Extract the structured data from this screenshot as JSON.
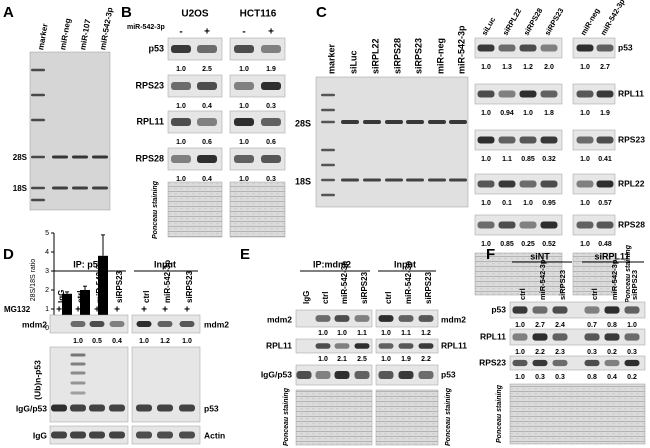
{
  "panel_a": {
    "letter": "A",
    "lanes": [
      "marker",
      "miR-neg",
      "miR-107",
      "miR-542-3p"
    ],
    "gel_labels": [
      "28S",
      "18S"
    ],
    "chart": {
      "type": "bar",
      "y_label": "28S/18S ratio",
      "values": [
        1.8,
        2.0,
        3.8
      ],
      "errors": [
        0.1,
        0.2,
        1.1
      ],
      "ylim": [
        0,
        5
      ],
      "yticks": [
        0,
        1,
        2,
        3,
        4,
        5
      ],
      "color": "#000000"
    }
  },
  "panel_b": {
    "letter": "B",
    "cell_lines": [
      "U2OS",
      "HCT116"
    ],
    "treatment": "miR-542-3p",
    "treatment_signs": [
      "-",
      "+",
      "-",
      "+"
    ],
    "blots": [
      {
        "protein": "p53",
        "quant": [
          "1.0",
          "2.5",
          "1.0",
          "1.9"
        ]
      },
      {
        "protein": "RPS23",
        "quant": [
          "1.0",
          "0.4",
          "1.0",
          "0.3"
        ]
      },
      {
        "protein": "RPL11",
        "quant": [
          "1.0",
          "0.6",
          "1.0",
          "0.6"
        ]
      },
      {
        "protein": "RPS28",
        "quant": [
          "1.0",
          "0.4",
          "1.0",
          "0.3"
        ]
      }
    ],
    "loading_control": "Ponceau staining"
  },
  "panel_c": {
    "letter": "C",
    "gel_lanes": [
      "marker",
      "siLuc",
      "siRPL22",
      "siRPS28",
      "siRPS23",
      "miR-neg",
      "miR-542-3p"
    ],
    "gel_labels": [
      "28S",
      "18S"
    ],
    "blot_lanes": [
      "siLuc",
      "siRPL22",
      "siRPS28",
      "siRPS23",
      "miR-neg",
      "miR-542-3p"
    ],
    "blots": [
      {
        "protein": "p53",
        "quant": [
          "1.0",
          "1.3",
          "1.2",
          "2.0",
          "1.0",
          "2.7"
        ]
      },
      {
        "protein": "RPL11",
        "quant": [
          "1.0",
          "0.94",
          "1.0",
          "1.8",
          "1.0",
          "1.9"
        ]
      },
      {
        "protein": "RPS23",
        "quant": [
          "1.0",
          "1.1",
          "0.85",
          "0.32",
          "1.0",
          "0.41"
        ]
      },
      {
        "protein": "RPL22",
        "quant": [
          "1.0",
          "0.1",
          "1.0",
          "0.95",
          "1.0",
          "0.57"
        ]
      },
      {
        "protein": "RPS28",
        "quant": [
          "1.0",
          "0.85",
          "0.25",
          "0.52",
          "1.0",
          "0.48"
        ]
      }
    ],
    "loading_control": "Ponceau staining"
  },
  "panel_d": {
    "letter": "D",
    "groups": [
      "IP: p53",
      "Input"
    ],
    "lanes": [
      "IgG",
      "ctrl",
      "miR-542-3p",
      "siRPS23",
      "ctrl",
      "miR-542-3p",
      "siRPS23"
    ],
    "treatment": "MG132",
    "treatment_signs": [
      "+",
      "+",
      "+",
      "+",
      "+",
      "+",
      "+"
    ],
    "left_labels": [
      "mdm2",
      "(Ub)n-p53",
      "IgG/p53",
      "IgG"
    ],
    "right_labels": [
      "mdm2",
      "p53",
      "Actin"
    ],
    "quant": [
      "1.0",
      "0.5",
      "0.4",
      "1.0",
      "1.2",
      "1.0"
    ]
  },
  "panel_e": {
    "letter": "E",
    "groups": [
      "IP:mdm2",
      "Input"
    ],
    "lanes": [
      "IgG",
      "ctrl",
      "miR-542-3p",
      "siRPS23",
      "ctrl",
      "miR-542-3p",
      "siRPS23"
    ],
    "left_labels": [
      "mdm2",
      "RPL11",
      "IgG/p53",
      "Ponceau staining"
    ],
    "right_labels": [
      "mdm2",
      "RPL11",
      "p53",
      "Ponceau staining"
    ],
    "quant": [
      [
        "1.0",
        "1.0",
        "1.1",
        "1.0",
        "1.1",
        "1.2"
      ],
      [
        "1.0",
        "2.1",
        "2.5",
        "1.0",
        "1.9",
        "2.2"
      ]
    ]
  },
  "panel_f": {
    "letter": "F",
    "groups": [
      "siNT",
      "siRPL11"
    ],
    "lanes": [
      "ctrl",
      "miR-542-3p",
      "siRPS23",
      "ctrl",
      "miR-542-3p",
      "siRPS23"
    ],
    "blots": [
      {
        "protein": "p53",
        "quant": [
          "1.0",
          "2.7",
          "2.4",
          "0.7",
          "0.8",
          "1.0"
        ]
      },
      {
        "protein": "RPL11",
        "quant": [
          "1.0",
          "2.2",
          "2.3",
          "0.3",
          "0.2",
          "0.3"
        ]
      },
      {
        "protein": "RPS23",
        "quant": [
          "1.0",
          "0.3",
          "0.3",
          "0.8",
          "0.4",
          "0.2"
        ]
      }
    ],
    "loading_control": "Ponceau staining"
  }
}
